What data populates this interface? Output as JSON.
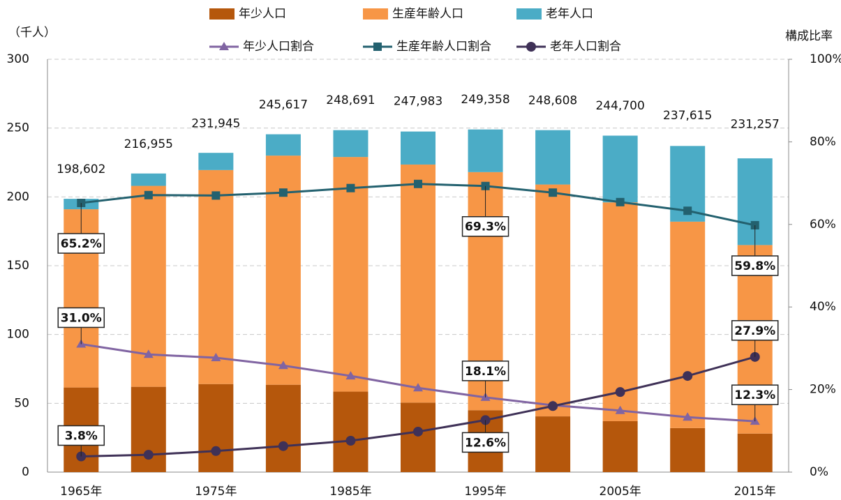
{
  "chart_data": {
    "type": "bar",
    "stacked": true,
    "categories": [
      "1965年",
      null,
      "1975年",
      null,
      "1985年",
      null,
      "1995年",
      null,
      "2005年",
      null,
      "2015年"
    ],
    "y_label": "（千人）",
    "y2_label": "構成比率",
    "ylim": [
      0,
      300
    ],
    "yticks": [
      0,
      50,
      100,
      150,
      200,
      250,
      300
    ],
    "y2lim": [
      0,
      100
    ],
    "y2ticks": [
      {
        "value": 0,
        "label": "0%"
      },
      {
        "value": 20,
        "label": "20%"
      },
      {
        "value": 40,
        "label": "40%"
      },
      {
        "value": 60,
        "label": "60%"
      },
      {
        "value": 80,
        "label": "80%"
      },
      {
        "value": 100,
        "label": "100%"
      }
    ],
    "grid": true,
    "series": [
      {
        "name": "年少人口",
        "type": "bar",
        "color": "#b5570c",
        "values": [
          61.5,
          62,
          64,
          63.5,
          58.5,
          50.5,
          45,
          40.5,
          37,
          32,
          28
        ]
      },
      {
        "name": "生産年齢人口",
        "type": "bar",
        "color": "#f79646",
        "values": [
          129.5,
          146,
          155.5,
          166.5,
          170.5,
          173,
          173,
          168.5,
          159,
          150,
          137
        ]
      },
      {
        "name": "老年人口",
        "type": "bar",
        "color": "#4bacc6",
        "values": [
          7.6,
          9,
          12.5,
          15.5,
          19.5,
          24,
          31,
          39.5,
          48.5,
          55,
          63
        ]
      },
      {
        "name": "年少人口割合",
        "type": "line",
        "axis": "y2",
        "marker": "triangle",
        "color": "#8064a2",
        "values": [
          31.0,
          28.5,
          27.7,
          25.8,
          23.3,
          20.4,
          18.1,
          16.2,
          14.9,
          13.3,
          12.3
        ],
        "value_labels": [
          "31.0%",
          null,
          null,
          null,
          null,
          null,
          "18.1%",
          null,
          null,
          null,
          "12.3%"
        ]
      },
      {
        "name": "生産年齢人口割合",
        "type": "line",
        "axis": "y2",
        "marker": "square",
        "color": "#23616f",
        "values": [
          65.2,
          67.1,
          67.0,
          67.7,
          68.8,
          69.8,
          69.3,
          67.7,
          65.4,
          63.3,
          59.8
        ],
        "value_labels": [
          "65.2%",
          null,
          null,
          null,
          null,
          null,
          "69.3%",
          null,
          null,
          null,
          "59.8%"
        ]
      },
      {
        "name": "老年人口割合",
        "type": "line",
        "axis": "y2",
        "marker": "circle",
        "color": "#3f3157",
        "values": [
          3.8,
          4.2,
          5.1,
          6.3,
          7.6,
          9.8,
          12.6,
          16.0,
          19.4,
          23.3,
          27.9
        ],
        "value_labels": [
          "3.8%",
          null,
          null,
          null,
          null,
          null,
          "12.6%",
          null,
          null,
          null,
          "27.9%"
        ]
      }
    ],
    "totals": {
      "values": [
        198.602,
        216.955,
        231.945,
        245.617,
        248.691,
        247.983,
        249.358,
        248.608,
        244.7,
        237.615,
        231.257
      ],
      "value_labels": [
        "198,602",
        "216,955",
        "231,945",
        "245,617",
        "248,691",
        "247,983",
        "249,358",
        "248,608",
        "244,700",
        "237,615",
        "231,257"
      ]
    }
  }
}
